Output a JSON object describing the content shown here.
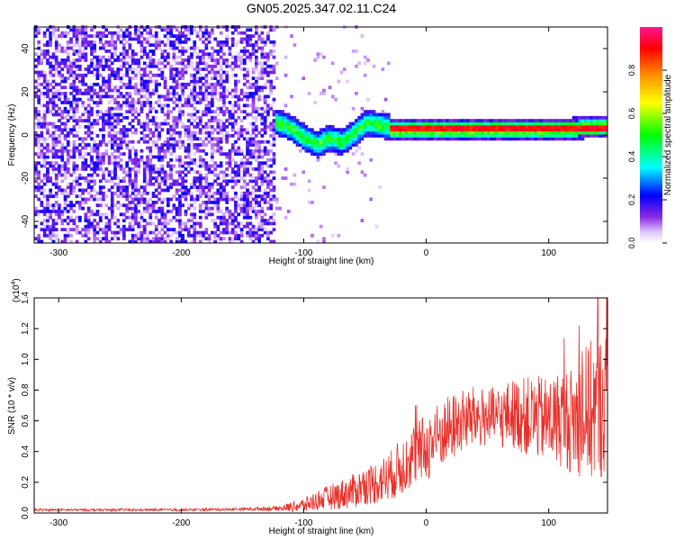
{
  "title": "GN05.2025.347.02.11.C24",
  "chart_data": [
    {
      "type": "heatmap",
      "title": "GN05.2025.347.02.11.C24",
      "xlabel": "Height of straight line (km)",
      "ylabel": "Frequency (Hz)",
      "xlim": [
        -320,
        148
      ],
      "ylim": [
        -50,
        50
      ],
      "x_ticks": [
        -300,
        -200,
        -100,
        0,
        100
      ],
      "y_ticks": [
        -40,
        -20,
        0,
        20,
        40
      ],
      "colorbar": {
        "label": "Normalized spectral amplitude",
        "range": [
          0,
          1
        ],
        "ticks": [
          "0.0",
          "0.2",
          "0.4",
          "0.6",
          "0.8"
        ],
        "tick_values": [
          0,
          0.2,
          0.4,
          0.6,
          0.8
        ],
        "colormap": "rainbow (white → purple → blue → cyan → green → yellow → orange → red → magenta)"
      },
      "regions": [
        {
          "x_range": [
            -320,
            -125
          ],
          "description": "broadband noise, amplitude ~0.1–0.3",
          "freq_range": [
            -50,
            50
          ]
        },
        {
          "x_range": [
            -125,
            -30
          ],
          "signal_center_hz": [
            [
              -125,
              6
            ],
            [
              -110,
              2
            ],
            [
              -100,
              -2
            ],
            [
              -90,
              -5
            ],
            [
              -80,
              -2
            ],
            [
              -70,
              -4
            ],
            [
              -60,
              0
            ],
            [
              -50,
              5
            ],
            [
              -40,
              4
            ],
            [
              -30,
              3
            ]
          ],
          "peak_amplitude": 0.5
        },
        {
          "x_range": [
            -30,
            148
          ],
          "signal_center_hz": [
            [
              -30,
              2
            ],
            [
              0,
              2
            ],
            [
              50,
              2
            ],
            [
              100,
              2
            ],
            [
              148,
              3
            ]
          ],
          "peak_amplitude": 0.95
        }
      ]
    },
    {
      "type": "line",
      "xlabel": "Height of straight line (km)",
      "ylabel": "SNR (10 * v/v)",
      "exponent_label": "(x10",
      "exponent_power": "4",
      "exponent_close": ")",
      "xlim": [
        -320,
        148
      ],
      "ylim": [
        0,
        1.4
      ],
      "x_ticks": [
        -300,
        -200,
        -100,
        0,
        100
      ],
      "y_ticks": [
        "0.0",
        "0.2",
        "0.4",
        "0.6",
        "0.8",
        "1.0",
        "1.2",
        "1.4"
      ],
      "y_tick_values": [
        0,
        0.2,
        0.4,
        0.6,
        0.8,
        1.0,
        1.2,
        1.4
      ],
      "color": "#e8302a",
      "series": [
        {
          "x": [
            -320,
            -250,
            -200,
            -150,
            -120,
            -100,
            -90,
            -80,
            -70,
            -60,
            -50,
            -40,
            -30,
            -20,
            -10,
            0,
            10,
            20,
            30,
            40,
            50,
            60,
            70,
            80,
            90,
            100,
            110,
            120,
            130,
            140,
            148
          ],
          "y": [
            0.02,
            0.02,
            0.02,
            0.025,
            0.03,
            0.05,
            0.08,
            0.1,
            0.12,
            0.14,
            0.18,
            0.2,
            0.24,
            0.3,
            0.38,
            0.42,
            0.5,
            0.55,
            0.6,
            0.62,
            0.62,
            0.62,
            0.65,
            0.63,
            0.62,
            0.6,
            0.62,
            0.6,
            0.65,
            0.68,
            0.72
          ],
          "noise_amplitude": [
            0.005,
            0.005,
            0.005,
            0.006,
            0.01,
            0.03,
            0.04,
            0.05,
            0.06,
            0.07,
            0.08,
            0.09,
            0.1,
            0.12,
            0.13,
            0.14,
            0.14,
            0.14,
            0.13,
            0.13,
            0.12,
            0.13,
            0.14,
            0.16,
            0.17,
            0.18,
            0.2,
            0.22,
            0.28,
            0.3,
            0.3
          ],
          "max_peak": {
            "x": 140,
            "y": 1.4
          }
        }
      ]
    }
  ]
}
